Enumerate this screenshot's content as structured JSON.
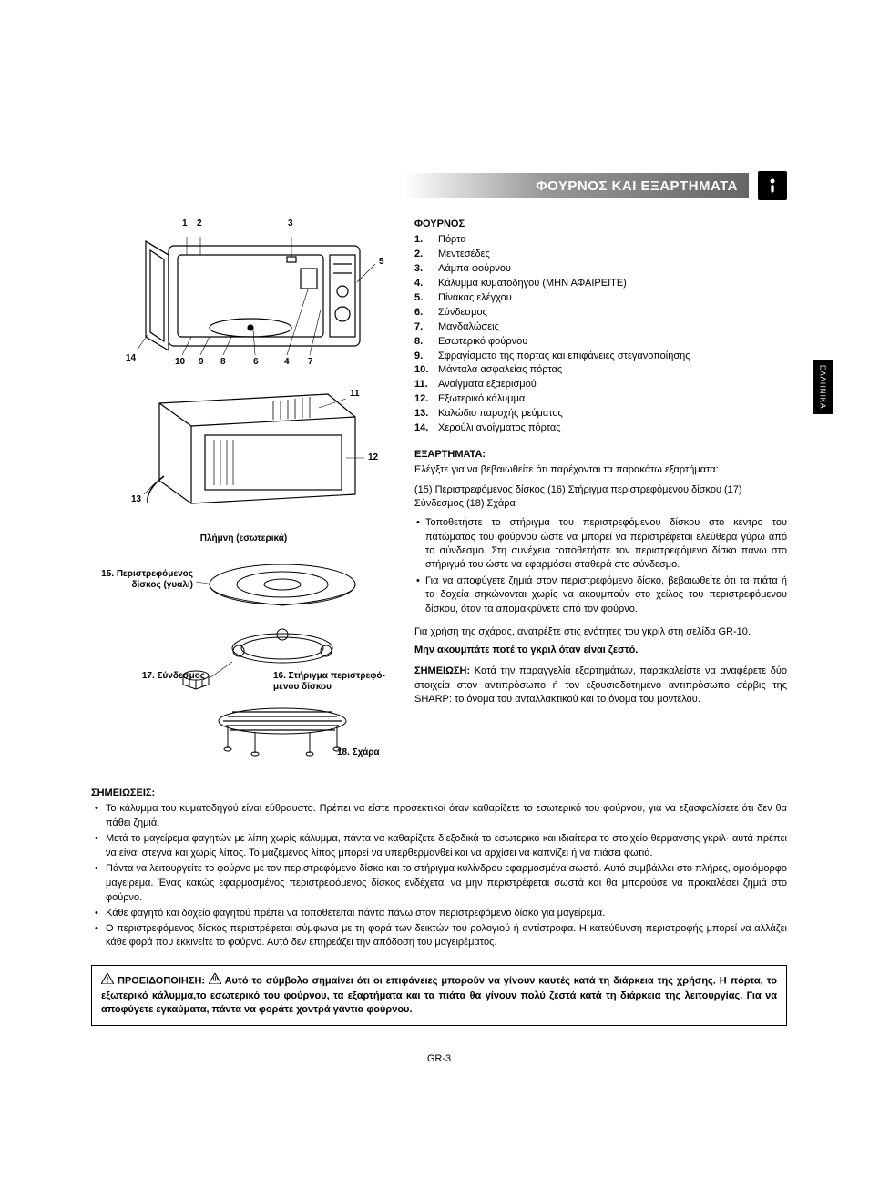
{
  "header": {
    "title": "ΦΟΥΡΝΟΣ ΚΑΙ ΕΞΑΡΤΗΜΑΤΑ"
  },
  "side_tab": "ΕΛΛΗΝΙΚΑ",
  "oven": {
    "title": "ΦΟΥΡΝΟΣ",
    "parts": [
      {
        "n": "1.",
        "t": "Πόρτα"
      },
      {
        "n": "2.",
        "t": "Μεντεσέδες"
      },
      {
        "n": "3.",
        "t": "Λάμπα φούρνου"
      },
      {
        "n": "4.",
        "t": "Κάλυμμα κυματοδηγού (ΜΗΝ ΑΦΑΙΡΕΙΤΕ)"
      },
      {
        "n": "5.",
        "t": "Πίνακας ελέγχου"
      },
      {
        "n": "6.",
        "t": "Σύνδεσμος"
      },
      {
        "n": "7.",
        "t": "Μανδαλώσεις"
      },
      {
        "n": "8.",
        "t": "Εσωτερικό φούρνου"
      },
      {
        "n": "9.",
        "t": "Σφραγίσματα της πόρτας και επιφάνειες στεγανοποίησης"
      },
      {
        "n": "10.",
        "t": "Μάνταλα ασφαλείας πόρτας"
      },
      {
        "n": "11.",
        "t": "Ανοίγματα εξαερισμού"
      },
      {
        "n": "12.",
        "t": "Εξωτερικό κάλυμμα"
      },
      {
        "n": "13.",
        "t": "Καλώδιο παροχής ρεύματος"
      },
      {
        "n": "14.",
        "t": "Χερούλι ανοίγματος πόρτας"
      }
    ]
  },
  "diagram_labels": {
    "top": {
      "l1": "1",
      "l2": "2",
      "l3": "3",
      "l5": "5",
      "l14": "14",
      "l10": "10",
      "l9": "9",
      "l8": "8",
      "l6": "6",
      "l4": "4",
      "l7": "7"
    },
    "bottom": {
      "l11": "11",
      "l12": "12",
      "l13": "13"
    },
    "hub_caption": "Πλήμνη (εσωτερικά)",
    "acc15": "15. Περιστρεφόμενος δίσκος (γυαλί)",
    "acc16": "16. Στήριγμα περιστρεφό-μενου δίσκου",
    "acc17": "17. Σύνδεσμος",
    "acc18": "18. Σχάρα"
  },
  "accessories": {
    "title": "ΕΞΑΡΤΗΜΑΤΑ:",
    "intro1": "Ελέγξτε για να βεβαιωθείτε ότι παρέχονται τα παρακάτω εξαρτήματα:",
    "intro2": "(15) Περιστρεφόμενος δίσκος (16) Στήριγμα περιστρεφόμενου δίσκου  (17) Σύνδεσμος (18) Σχάρα",
    "bullets": [
      "Τοποθετήστε το στήριγμα του περιστρεφόμενου δίσκου στο κέντρο του πατώματος του φούρνου ώστε να μπορεί να περιστρέφεται ελεύθερα γύρω από το σύνδεσμο. Στη συνέχεια τοποθετήστε τον περιστρεφόμενο δίσκο πάνω στο στήριγμά του ώστε να εφαρμόσει σταθερά στο σύνδεσμο.",
      "Για να αποφύγετε ζημιά στον περιστρεφόμενο δίσκο, βεβαιωθείτε ότι τα πιάτα ή τα δοχεία σηκώνονται χωρίς να ακουμπούν στο χείλος του περιστρεφόμενου δίσκου, όταν τα απομακρύνετε από τον φούρνο."
    ],
    "grill_ref": "Για χρήση της σχάρας, ανατρέξτε στις ενότητες του γκριλ στη σελίδα GR-10.",
    "no_touch": "Μην ακουμπάτε ποτέ το γκριλ όταν είναι ζεστό.",
    "note_label": "ΣΗΜΕΙΩΣΗ:",
    "note_text": " Κατά την παραγγελία εξαρτημάτων, παρακαλείστε να αναφέρετε δύο στοιχεία στον αντιπρόσωπο ή τον εξουσιοδοτημένο αντιπρόσωπο σέρβις της SHARP: το όνομα του ανταλλακτικού και το όνομα του μοντέλου."
  },
  "notes": {
    "title": "ΣΗΜΕΙΩΣΕΙΣ:",
    "items": [
      "Το κάλυμμα του κυματοδηγού είναι εύθραυστο. Πρέπει να είστε προσεκτικοί όταν καθαρίζετε το εσωτερικό του φούρνου, για να εξασφαλίσετε ότι δεν θα πάθει ζημιά.",
      "Μετά το μαγείρεμα φαγητών με λίπη χωρίς κάλυμμα, πάντα να καθαρίζετε διεξοδικά το εσωτερικό και ιδιαίτερα το στοιχείο θέρμανσης γκριλ· αυτά πρέπει να είναι στεγνά και χωρίς λίπος. Το μαζεμένος λίπος μπορεί να υπερθερμανθεί και να αρχίσει να καπνίζει ή να πιάσει φωτιά.",
      "Πάντα να λειτουργείτε το φούρνο με τον περιστρεφόμενο δίσκο και το στήριγμα κυλίνδρου εφαρμοσμένα σωστά. Αυτό συμβάλλει στο πλήρες, ομοιόμορφο μαγείρεμα. Ένας κακώς εφαρμοσμένος περιστρεφόμενος δίσκος ενδέχεται να μην περιστρέφεται σωστά και θα μπορούσε να προκαλέσει ζημιά στο φούρνο.",
      "Κάθε φαγητό και δοχείο φαγητού πρέπει να τοποθετείται πάντα πάνω στον περιστρεφόμενο δίσκο για μαγείρεμα.",
      "Ο περιστρεφόμενος δίσκος περιστρέφεται σύμφωνα με τη φορά των δεικτών του ρολογιού ή αντίστροφα. Η κατεύθυνση περιστροφής μπορεί να αλλάζει κάθε φορά που εκκινείτε το φούρνο. Αυτό δεν επηρεάζει την απόδοση του μαγειρέματος."
    ]
  },
  "warning": {
    "label": "ΠΡΟΕΙΔΟΠΟΙΗΣΗ:",
    "text": "Αυτό το σύμβολο σημαίνει ότι οι επιφάνειες μπορούν να γίνουν καυτές κατά τη διάρκεια της χρήσης. Η πόρτα, το εξωτερικό κάλυμμα,το εσωτερικό του φούρνου, τα εξαρτήματα και τα πιάτα θα γίνουν πολύ ζεστά κατά τη διάρκεια της λειτουργίας. Για να αποφύγετε εγκαύματα, πάντα να φοράτε χοντρά γάντια φούρνου."
  },
  "page_number": "GR-3"
}
